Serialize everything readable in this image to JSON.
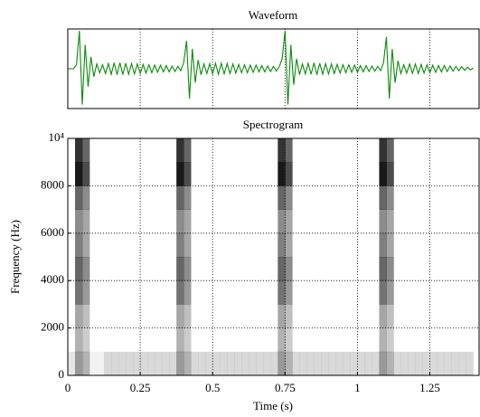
{
  "chart_data": [
    {
      "type": "line",
      "title": "Waveform",
      "color": "#0b8a0b",
      "grid": true,
      "xlim": [
        0,
        1.42
      ],
      "ylim": [
        -1,
        1
      ],
      "x": [
        0,
        0.01,
        0.02,
        0.03,
        0.04,
        0.05,
        0.06,
        0.07,
        0.08,
        0.09,
        0.1,
        0.11,
        0.12,
        0.13,
        0.14,
        0.15,
        0.16,
        0.17,
        0.18,
        0.19,
        0.2,
        0.21,
        0.22,
        0.23,
        0.24,
        0.25,
        0.26,
        0.27,
        0.28,
        0.29,
        0.3,
        0.31,
        0.32,
        0.33,
        0.34,
        0.35,
        0.36,
        0.37,
        0.38,
        0.39,
        0.4,
        0.41,
        0.42,
        0.43,
        0.44,
        0.45,
        0.46,
        0.47,
        0.48,
        0.49,
        0.5,
        0.51,
        0.52,
        0.53,
        0.54,
        0.55,
        0.56,
        0.57,
        0.58,
        0.59,
        0.6,
        0.61,
        0.62,
        0.63,
        0.64,
        0.65,
        0.66,
        0.67,
        0.68,
        0.69,
        0.7,
        0.71,
        0.72,
        0.73,
        0.74,
        0.75,
        0.76,
        0.77,
        0.78,
        0.79,
        0.8,
        0.81,
        0.82,
        0.83,
        0.84,
        0.85,
        0.86,
        0.87,
        0.88,
        0.89,
        0.9,
        0.91,
        0.92,
        0.93,
        0.94,
        0.95,
        0.96,
        0.97,
        0.98,
        0.99,
        1,
        1.01,
        1.02,
        1.03,
        1.04,
        1.05,
        1.06,
        1.07,
        1.08,
        1.09,
        1.1,
        1.11,
        1.12,
        1.13,
        1.14,
        1.15,
        1.16,
        1.17,
        1.18,
        1.19,
        1.2,
        1.21,
        1.22,
        1.23,
        1.24,
        1.25,
        1.26,
        1.27,
        1.28,
        1.29,
        1.3,
        1.31,
        1.32,
        1.33,
        1.34,
        1.35,
        1.36,
        1.37,
        1.38,
        1.39,
        1.4
      ],
      "values": [
        0,
        0,
        0,
        0.1,
        0.95,
        -0.9,
        0.6,
        -0.45,
        0.3,
        -0.2,
        0.12,
        -0.1,
        0.1,
        -0.12,
        0.13,
        -0.14,
        0.15,
        -0.15,
        0.15,
        -0.15,
        0.14,
        -0.14,
        0.13,
        -0.13,
        0.12,
        -0.12,
        0.11,
        -0.11,
        0.1,
        -0.1,
        0.09,
        -0.09,
        0.09,
        -0.08,
        0.08,
        -0.08,
        0.07,
        -0.07,
        0.06,
        -0.05,
        0.15,
        0.7,
        -0.75,
        0.5,
        -0.35,
        0.22,
        -0.15,
        0.12,
        -0.12,
        0.13,
        -0.13,
        0.14,
        -0.14,
        0.14,
        -0.13,
        0.13,
        -0.12,
        0.12,
        -0.11,
        0.11,
        -0.1,
        0.1,
        -0.1,
        0.09,
        -0.09,
        0.09,
        -0.08,
        0.08,
        -0.08,
        0.07,
        -0.07,
        0.06,
        -0.06,
        0.05,
        0.25,
        0.95,
        -0.9,
        0.6,
        -0.4,
        0.25,
        -0.15,
        0.12,
        -0.13,
        0.14,
        -0.14,
        0.15,
        -0.15,
        0.14,
        -0.14,
        0.13,
        -0.13,
        0.12,
        -0.12,
        0.11,
        -0.11,
        0.1,
        -0.1,
        0.1,
        -0.09,
        0.09,
        -0.09,
        0.08,
        -0.08,
        0.08,
        -0.07,
        0.07,
        -0.06,
        0.06,
        -0.05,
        0.15,
        0.8,
        -0.75,
        0.5,
        -0.35,
        0.2,
        -0.12,
        0.1,
        -0.11,
        0.12,
        -0.12,
        0.12,
        -0.12,
        0.11,
        -0.11,
        0.1,
        -0.1,
        0.09,
        -0.09,
        0.08,
        -0.08,
        0.08,
        -0.07,
        0.07,
        -0.06,
        0.06,
        -0.05,
        0.05,
        -0.04,
        0.04,
        -0.03,
        0.02
      ]
    },
    {
      "type": "heatmap",
      "title": "Spectrogram",
      "x_label": "Time (s)",
      "y_label": "Frequency (Hz)",
      "color": "#000000",
      "grid": true,
      "xlim": [
        0,
        1.42
      ],
      "ylim": [
        0,
        10000
      ],
      "xticks": [
        0,
        0.25,
        0.5,
        0.75,
        1,
        1.25
      ],
      "yticks": [
        0,
        2000,
        4000,
        6000,
        8000,
        {
          "value": 10000,
          "label": "10⁴"
        }
      ],
      "xbins": [
        0,
        0.025,
        0.05,
        0.075,
        0.1,
        0.125,
        0.15,
        0.175,
        0.2,
        0.225,
        0.25,
        0.275,
        0.3,
        0.325,
        0.35,
        0.375,
        0.4,
        0.425,
        0.45,
        0.475,
        0.5,
        0.525,
        0.55,
        0.575,
        0.6,
        0.625,
        0.65,
        0.675,
        0.7,
        0.725,
        0.75,
        0.775,
        0.8,
        0.825,
        0.85,
        0.875,
        0.9,
        0.925,
        0.95,
        0.975,
        1,
        1.025,
        1.05,
        1.075,
        1.1,
        1.125,
        1.15,
        1.175,
        1.2,
        1.225,
        1.25,
        1.275,
        1.3,
        1.325,
        1.35,
        1.375,
        1.4
      ],
      "ybins": [
        0,
        1000,
        2000,
        3000,
        4000,
        5000,
        6000,
        7000,
        8000,
        9000,
        10000
      ],
      "z": [
        [
          0.1,
          0.4,
          0.3,
          0.05,
          0.05,
          0.15,
          0.15,
          0.15,
          0.15,
          0.15,
          0.15,
          0.15,
          0.15,
          0.15,
          0.15,
          0.4,
          0.3,
          0.15,
          0.15,
          0.15,
          0.15,
          0.15,
          0.15,
          0.15,
          0.15,
          0.15,
          0.15,
          0.15,
          0.15,
          0.4,
          0.3,
          0.15,
          0.15,
          0.15,
          0.15,
          0.15,
          0.15,
          0.15,
          0.15,
          0.15,
          0.15,
          0.15,
          0.15,
          0.4,
          0.3,
          0.15,
          0.15,
          0.15,
          0.15,
          0.15,
          0.15,
          0.15,
          0.15,
          0.15,
          0.15,
          0.15
        ],
        [
          0,
          0.3,
          0.2,
          0,
          0,
          0,
          0,
          0,
          0,
          0,
          0,
          0,
          0,
          0,
          0,
          0.3,
          0.2,
          0,
          0,
          0,
          0,
          0,
          0,
          0,
          0,
          0,
          0,
          0,
          0,
          0.3,
          0.2,
          0,
          0,
          0,
          0,
          0,
          0,
          0,
          0,
          0,
          0,
          0,
          0,
          0.3,
          0.2,
          0,
          0,
          0,
          0,
          0,
          0,
          0,
          0,
          0,
          0,
          0
        ],
        [
          0,
          0.35,
          0.25,
          0,
          0,
          0,
          0,
          0,
          0,
          0,
          0,
          0,
          0,
          0,
          0,
          0.35,
          0.25,
          0,
          0,
          0,
          0,
          0,
          0,
          0,
          0,
          0,
          0,
          0,
          0,
          0.35,
          0.25,
          0,
          0,
          0,
          0,
          0,
          0,
          0,
          0,
          0,
          0,
          0,
          0,
          0.35,
          0.25,
          0,
          0,
          0,
          0,
          0,
          0,
          0,
          0,
          0,
          0,
          0
        ],
        [
          0,
          0.55,
          0.4,
          0,
          0,
          0,
          0,
          0,
          0,
          0,
          0,
          0,
          0,
          0,
          0,
          0.55,
          0.4,
          0,
          0,
          0,
          0,
          0,
          0,
          0,
          0,
          0,
          0,
          0,
          0,
          0.55,
          0.4,
          0,
          0,
          0,
          0,
          0,
          0,
          0,
          0,
          0,
          0,
          0,
          0,
          0.55,
          0.4,
          0,
          0,
          0,
          0,
          0,
          0,
          0,
          0,
          0,
          0,
          0
        ],
        [
          0,
          0.6,
          0.45,
          0,
          0,
          0,
          0,
          0,
          0,
          0,
          0,
          0,
          0,
          0,
          0,
          0.6,
          0.45,
          0,
          0,
          0,
          0,
          0,
          0,
          0,
          0,
          0,
          0,
          0,
          0,
          0.6,
          0.45,
          0,
          0,
          0,
          0,
          0,
          0,
          0,
          0,
          0,
          0,
          0,
          0,
          0.6,
          0.45,
          0,
          0,
          0,
          0,
          0,
          0,
          0,
          0,
          0,
          0,
          0
        ],
        [
          0,
          0.5,
          0.35,
          0,
          0,
          0,
          0,
          0,
          0,
          0,
          0,
          0,
          0,
          0,
          0,
          0.5,
          0.35,
          0,
          0,
          0,
          0,
          0,
          0,
          0,
          0,
          0,
          0,
          0,
          0,
          0.5,
          0.35,
          0,
          0,
          0,
          0,
          0,
          0,
          0,
          0,
          0,
          0,
          0,
          0,
          0.5,
          0.35,
          0,
          0,
          0,
          0,
          0,
          0,
          0,
          0,
          0,
          0,
          0
        ],
        [
          0,
          0.45,
          0.35,
          0,
          0,
          0,
          0,
          0,
          0,
          0,
          0,
          0,
          0,
          0,
          0,
          0.45,
          0.35,
          0,
          0,
          0,
          0,
          0,
          0,
          0,
          0,
          0,
          0,
          0,
          0,
          0.45,
          0.35,
          0,
          0,
          0,
          0,
          0,
          0,
          0,
          0,
          0,
          0,
          0,
          0,
          0.45,
          0.35,
          0,
          0,
          0,
          0,
          0,
          0,
          0,
          0,
          0,
          0,
          0
        ],
        [
          0,
          0.6,
          0.45,
          0,
          0,
          0,
          0,
          0,
          0,
          0,
          0,
          0,
          0,
          0,
          0,
          0.6,
          0.45,
          0,
          0,
          0,
          0,
          0,
          0,
          0,
          0,
          0,
          0,
          0,
          0,
          0.6,
          0.45,
          0,
          0,
          0,
          0,
          0,
          0,
          0,
          0,
          0,
          0,
          0,
          0,
          0.6,
          0.45,
          0,
          0,
          0,
          0,
          0,
          0,
          0,
          0,
          0,
          0,
          0
        ],
        [
          0,
          0.9,
          0.7,
          0,
          0,
          0,
          0,
          0,
          0,
          0,
          0,
          0,
          0,
          0,
          0,
          0.9,
          0.7,
          0,
          0,
          0,
          0,
          0,
          0,
          0,
          0,
          0,
          0,
          0,
          0,
          0.9,
          0.7,
          0,
          0,
          0,
          0,
          0,
          0,
          0,
          0,
          0,
          0,
          0,
          0,
          0.9,
          0.7,
          0,
          0,
          0,
          0,
          0,
          0,
          0,
          0,
          0,
          0,
          0
        ],
        [
          0,
          0.8,
          0.6,
          0,
          0,
          0,
          0,
          0,
          0,
          0,
          0,
          0,
          0,
          0,
          0,
          0.8,
          0.6,
          0,
          0,
          0,
          0,
          0,
          0,
          0,
          0,
          0,
          0,
          0,
          0,
          0.8,
          0.6,
          0,
          0,
          0,
          0,
          0,
          0,
          0,
          0,
          0,
          0,
          0,
          0,
          0.8,
          0.6,
          0,
          0,
          0,
          0,
          0,
          0,
          0,
          0,
          0,
          0,
          0
        ]
      ]
    }
  ]
}
